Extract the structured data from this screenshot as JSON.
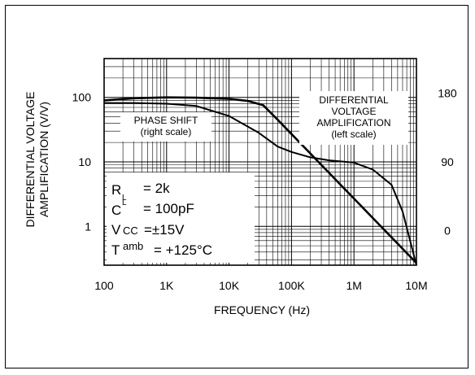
{
  "chart_data": {
    "type": "line",
    "title": "",
    "xlabel": "FREQUENCY (Hz)",
    "ylabel_line1": "DIFFERENTIAL VOLTAGE",
    "ylabel_line2": "AMPLIFICATION (V/V)",
    "x_scale": "log",
    "xlim": [
      100,
      10000000
    ],
    "x_ticks": [
      {
        "value": 100,
        "label": "100"
      },
      {
        "value": 1000,
        "label": "1K"
      },
      {
        "value": 10000,
        "label": "10K"
      },
      {
        "value": 100000,
        "label": "100K"
      },
      {
        "value": 1000000,
        "label": "1M"
      },
      {
        "value": 10000000,
        "label": "10M"
      }
    ],
    "y_left_scale": "log",
    "ylim_left": [
      0.25,
      400
    ],
    "y_left_ticks": [
      {
        "value": 1,
        "label": "1"
      },
      {
        "value": 10,
        "label": "10"
      },
      {
        "value": 100,
        "label": "100"
      }
    ],
    "ylim_right": [
      -45,
      225
    ],
    "y_right_ticks": [
      {
        "value": 0,
        "label": "0"
      },
      {
        "value": 90,
        "label": "90"
      },
      {
        "value": 180,
        "label": "180"
      }
    ],
    "grid": true,
    "series": [
      {
        "name": "DIFFERENTIAL VOLTAGE AMPLIFICATION (left scale)",
        "label_lines": [
          "DIFFERENTIAL",
          "VOLTAGE",
          "AMPLIFICATION",
          "(left scale)"
        ],
        "axis": "left",
        "x": [
          100,
          300,
          1000,
          3000,
          10000,
          20000,
          35000,
          60000,
          100000,
          300000,
          1000000,
          3000000,
          10000000
        ],
        "y": [
          90,
          97,
          100,
          99,
          95,
          88,
          76,
          45,
          27,
          9,
          2.7,
          0.9,
          0.27
        ]
      },
      {
        "name": "PHASE SHIFT (right scale)",
        "label_lines": [
          "PHASE SHIFT",
          "(right scale)"
        ],
        "axis": "right",
        "x": [
          100,
          300,
          1000,
          3000,
          10000,
          30000,
          60000,
          100000,
          200000,
          400000,
          1000000,
          2000000,
          4000000,
          6000000,
          10000000
        ],
        "y": [
          167,
          167,
          166,
          163,
          150,
          128,
          110,
          103,
          96,
          92,
          89,
          80,
          60,
          25,
          -45
        ]
      }
    ],
    "annotations": {
      "rl": {
        "main": "R",
        "sub": "L",
        "val": "= 2k"
      },
      "cl": {
        "main": "C",
        "sub": "L",
        "val": "= 100pF"
      },
      "vcc": {
        "main": "V",
        "sub": "CC",
        "val": "=±15V"
      },
      "tamb": {
        "main": "T",
        "sub": "amb",
        "val": "= +125°C"
      }
    }
  }
}
